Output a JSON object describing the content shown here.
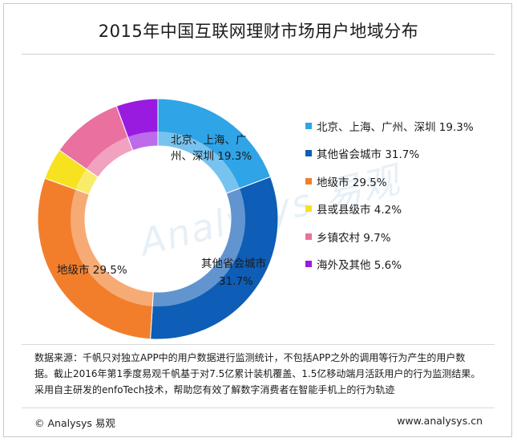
{
  "header": {
    "title": "2015年中国互联网理财市场用户地域分布"
  },
  "chart_data": {
    "type": "pie",
    "subtype": "donut",
    "title": "2015年中国互联网理财市场用户地域分布",
    "unit": "%",
    "slices": [
      {
        "label": "北京、上海、广州、深圳",
        "value": 19.3,
        "color": "#2FA4E7"
      },
      {
        "label": "其他省会城市",
        "value": 31.7,
        "color": "#0E5DB6"
      },
      {
        "label": "地级市",
        "value": 29.5,
        "color": "#F27E2C"
      },
      {
        "label": "县或县级市",
        "value": 4.2,
        "color": "#F6E21E"
      },
      {
        "label": "乡镇农村",
        "value": 9.7,
        "color": "#E9709F"
      },
      {
        "label": "海外及其他",
        "value": 5.6,
        "color": "#9A1BE0"
      }
    ],
    "slice_labels": [
      {
        "line1": "北京、上海、广",
        "line2": "州、深圳  19.3%"
      },
      {
        "line1": "其他省会城市",
        "line2": "31.7%"
      },
      {
        "line1": "地级市  29.5%",
        "line2": ""
      }
    ],
    "legend": [
      "北京、上海、广州、深圳  19.3%",
      "其他省会城市  31.7%",
      "地级市  29.5%",
      "县或县级市  4.2%",
      "乡镇农村  9.7%",
      "海外及其他  5.6%"
    ],
    "legend_position": "right"
  },
  "watermark": "Analysys 易观",
  "source": {
    "text": "数据来源：千帆只对独立APP中的用户数据进行监测统计，不包括APP之外的调用等行为产生的用户数据。截止2016年第1季度易观千帆基于对7.5亿累计装机覆盖、1.5亿移动端月活跃用户的行为监测结果。采用自主研发的enfoTech技术，帮助您有效了解数字消费者在智能手机上的行为轨迹"
  },
  "footer": {
    "copyright": "© Analysys 易观",
    "url": "www.analysys.cn"
  }
}
